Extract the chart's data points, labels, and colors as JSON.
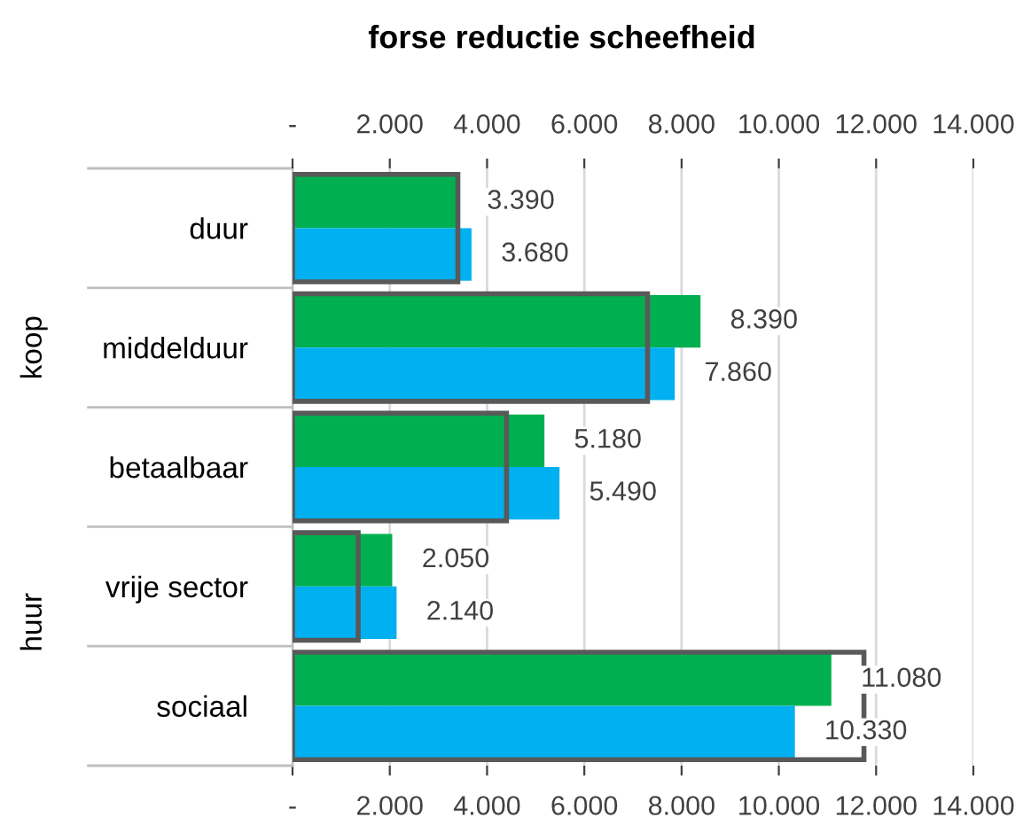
{
  "chart_data": {
    "type": "bar",
    "orientation": "horizontal",
    "title": "forse reductie scheefheid",
    "categories": [
      "duur",
      "middelduur",
      "betaalbaar",
      "vrije sector",
      "sociaal"
    ],
    "series": [
      {
        "color": "#00b050",
        "values": [
          3390,
          8390,
          5180,
          2050,
          11080
        ],
        "value_labels": [
          "3.390",
          "8.390",
          "5.180",
          "2.050",
          "11.080"
        ]
      },
      {
        "color": "#00b0f0",
        "values": [
          3680,
          7860,
          5490,
          2140,
          10330
        ],
        "value_labels": [
          "3.680",
          "7.860",
          "5.490",
          "2.140",
          "10.330"
        ]
      },
      {
        "color": "#595959",
        "values": [
          3400,
          7300,
          4400,
          1350,
          11750
        ]
      }
    ],
    "xlim": [
      0,
      14000
    ],
    "xticks": [
      {
        "value": 0,
        "label": "-"
      },
      {
        "value": 2000,
        "label": "2.000"
      },
      {
        "value": 4000,
        "label": "4.000"
      },
      {
        "value": 6000,
        "label": "6.000"
      },
      {
        "value": 8000,
        "label": "8.000"
      },
      {
        "value": 10000,
        "label": "10.000"
      },
      {
        "value": 12000,
        "label": "12.000"
      },
      {
        "value": 14000,
        "label": "14.000"
      }
    ],
    "x2lim": [
      0,
      14000
    ],
    "x2ticks": [
      {
        "value": 0,
        "label": "-"
      },
      {
        "value": 2000,
        "label": "2.000"
      },
      {
        "value": 4000,
        "label": "4.000"
      },
      {
        "value": 6000,
        "label": "6.000"
      },
      {
        "value": 8000,
        "label": "8.000"
      },
      {
        "value": 10000,
        "label": "10.000"
      },
      {
        "value": 12000,
        "label": "12.000"
      },
      {
        "value": 14000,
        "label": "14.000"
      }
    ],
    "grid": "x",
    "legend": false,
    "annotations": [
      "koop",
      "huur"
    ]
  }
}
